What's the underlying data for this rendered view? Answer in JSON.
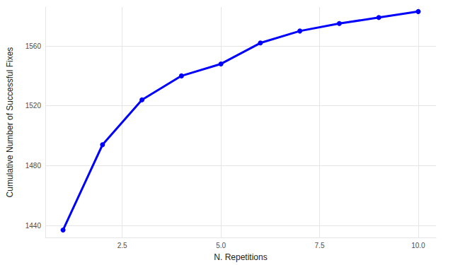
{
  "chart_data": {
    "type": "line",
    "x_label": "N. Repetitions",
    "y_label": "Cumulative Number of Successful Fixes",
    "x": [
      1,
      2,
      3,
      4,
      5,
      6,
      7,
      8,
      9,
      10
    ],
    "values": [
      1437,
      1494,
      1524,
      1540,
      1548,
      1562,
      1570,
      1575,
      1579,
      1583
    ],
    "color": "#0000ff",
    "marker": "circle",
    "line_style": "solid",
    "xlim": [
      0.55,
      10.45
    ],
    "xticks": [
      {
        "value": 2.5,
        "label": "2.5"
      },
      {
        "value": 5,
        "label": "5.0"
      },
      {
        "value": 7.5,
        "label": "7.5"
      },
      {
        "value": 10,
        "label": "10.0"
      }
    ],
    "ylim": [
      1432,
      1586
    ],
    "yticks": [
      1440,
      1480,
      1520,
      1560
    ],
    "grid": true
  }
}
